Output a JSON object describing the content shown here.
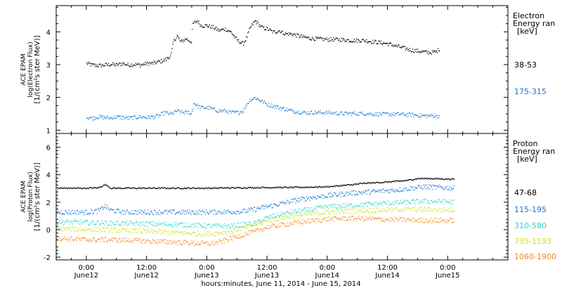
{
  "chart_data": [
    {
      "type": "scatter",
      "title": "",
      "ylabel": [
        "ACE EPAM",
        "log(Electron Flux)",
        "[1/(cm²s ster MeV)]"
      ],
      "ylim": [
        0.9,
        4.8
      ],
      "yticks": [
        1,
        2,
        3,
        4
      ],
      "legend_title": [
        "Electron",
        "Energy ran",
        "[keV]"
      ],
      "series": [
        {
          "name": "38-53",
          "color": "#000000",
          "points": [
            [
              0.0,
              3.05
            ],
            [
              0.05,
              3.0
            ],
            [
              0.1,
              2.98
            ],
            [
              0.15,
              3.0
            ],
            [
              0.2,
              3.02
            ],
            [
              0.25,
              3.0
            ],
            [
              0.3,
              3.05
            ],
            [
              0.35,
              3.0
            ],
            [
              0.4,
              3.02
            ],
            [
              0.45,
              3.0
            ],
            [
              0.5,
              3.05
            ],
            [
              0.55,
              3.05
            ],
            [
              0.6,
              3.1
            ],
            [
              0.65,
              3.15
            ],
            [
              0.7,
              3.3
            ],
            [
              0.72,
              3.7
            ],
            [
              0.75,
              3.9
            ],
            [
              0.78,
              3.7
            ],
            [
              0.8,
              3.75
            ],
            [
              0.83,
              3.8
            ],
            [
              0.85,
              3.75
            ],
            [
              0.87,
              3.7
            ],
            [
              0.88,
              4.25
            ],
            [
              0.92,
              4.35
            ],
            [
              0.95,
              4.2
            ],
            [
              1.0,
              4.2
            ],
            [
              1.05,
              4.15
            ],
            [
              1.1,
              4.05
            ],
            [
              1.15,
              4.1
            ],
            [
              1.2,
              4.0
            ],
            [
              1.25,
              3.75
            ],
            [
              1.3,
              3.65
            ],
            [
              1.33,
              3.85
            ],
            [
              1.36,
              4.15
            ],
            [
              1.4,
              4.35
            ],
            [
              1.45,
              4.15
            ],
            [
              1.5,
              4.1
            ],
            [
              1.55,
              4.0
            ],
            [
              1.6,
              4.05
            ],
            [
              1.65,
              3.95
            ],
            [
              1.7,
              3.95
            ],
            [
              1.75,
              3.9
            ],
            [
              1.8,
              3.85
            ],
            [
              1.85,
              3.82
            ],
            [
              1.9,
              3.8
            ],
            [
              2.0,
              3.78
            ],
            [
              2.1,
              3.78
            ],
            [
              2.2,
              3.75
            ],
            [
              2.3,
              3.75
            ],
            [
              2.4,
              3.7
            ],
            [
              2.5,
              3.65
            ],
            [
              2.6,
              3.55
            ],
            [
              2.7,
              3.45
            ],
            [
              2.8,
              3.4
            ],
            [
              2.85,
              3.38
            ],
            [
              2.9,
              3.4
            ],
            [
              2.93,
              3.5
            ]
          ]
        },
        {
          "name": "175-315",
          "color": "#1e78d2",
          "points": [
            [
              0.0,
              1.4
            ],
            [
              0.05,
              1.38
            ],
            [
              0.1,
              1.42
            ],
            [
              0.15,
              1.4
            ],
            [
              0.2,
              1.38
            ],
            [
              0.25,
              1.42
            ],
            [
              0.3,
              1.4
            ],
            [
              0.35,
              1.38
            ],
            [
              0.4,
              1.4
            ],
            [
              0.45,
              1.42
            ],
            [
              0.5,
              1.4
            ],
            [
              0.55,
              1.42
            ],
            [
              0.6,
              1.45
            ],
            [
              0.65,
              1.55
            ],
            [
              0.7,
              1.5
            ],
            [
              0.75,
              1.6
            ],
            [
              0.8,
              1.55
            ],
            [
              0.85,
              1.55
            ],
            [
              0.87,
              1.5
            ],
            [
              0.89,
              1.85
            ],
            [
              0.92,
              1.75
            ],
            [
              0.95,
              1.7
            ],
            [
              1.0,
              1.7
            ],
            [
              1.05,
              1.65
            ],
            [
              1.1,
              1.6
            ],
            [
              1.15,
              1.6
            ],
            [
              1.2,
              1.55
            ],
            [
              1.25,
              1.55
            ],
            [
              1.3,
              1.6
            ],
            [
              1.33,
              1.8
            ],
            [
              1.36,
              1.95
            ],
            [
              1.4,
              2.0
            ],
            [
              1.45,
              1.9
            ],
            [
              1.5,
              1.8
            ],
            [
              1.55,
              1.75
            ],
            [
              1.6,
              1.7
            ],
            [
              1.7,
              1.6
            ],
            [
              1.8,
              1.55
            ],
            [
              1.9,
              1.55
            ],
            [
              2.0,
              1.55
            ],
            [
              2.1,
              1.52
            ],
            [
              2.2,
              1.52
            ],
            [
              2.3,
              1.52
            ],
            [
              2.4,
              1.5
            ],
            [
              2.5,
              1.5
            ],
            [
              2.6,
              1.5
            ],
            [
              2.7,
              1.48
            ],
            [
              2.8,
              1.45
            ],
            [
              2.9,
              1.45
            ],
            [
              2.93,
              1.45
            ]
          ]
        }
      ]
    },
    {
      "type": "scatter",
      "title": "",
      "ylabel": [
        "ACE EPAM",
        "log(Proton Flux)",
        "[1/(cm²s ster MeV)]"
      ],
      "ylim": [
        -2.2,
        7.0
      ],
      "yticks": [
        -2,
        0,
        2,
        4,
        6
      ],
      "legend_title": [
        "Proton",
        "Energy ran",
        "[keV]"
      ],
      "xlabel": "hours:minutes, June 11, 2014 - June 15, 2014",
      "x_domain_days": [
        -0.25,
        3.5
      ],
      "xticks": [
        {
          "day": 0.0,
          "time": "0:00",
          "date": "June12"
        },
        {
          "day": 0.5,
          "time": "12:00",
          "date": "June12"
        },
        {
          "day": 1.0,
          "time": "0:00",
          "date": "June13"
        },
        {
          "day": 1.5,
          "time": "12:00",
          "date": "June13"
        },
        {
          "day": 2.0,
          "time": "0:00",
          "date": "June14"
        },
        {
          "day": 2.5,
          "time": "12:00",
          "date": "June14"
        },
        {
          "day": 3.0,
          "time": "0:00",
          "date": "June15"
        }
      ],
      "series": [
        {
          "name": "47-68",
          "color": "#000000",
          "points": [
            [
              -0.25,
              3.05
            ],
            [
              0.0,
              3.05
            ],
            [
              0.1,
              3.08
            ],
            [
              0.15,
              3.3
            ],
            [
              0.18,
              3.2
            ],
            [
              0.2,
              3.05
            ],
            [
              0.5,
              3.05
            ],
            [
              1.0,
              3.05
            ],
            [
              1.5,
              3.1
            ],
            [
              1.7,
              3.1
            ],
            [
              2.0,
              3.15
            ],
            [
              2.2,
              3.3
            ],
            [
              2.3,
              3.4
            ],
            [
              2.5,
              3.5
            ],
            [
              2.65,
              3.6
            ],
            [
              2.75,
              3.75
            ],
            [
              2.85,
              3.75
            ],
            [
              3.05,
              3.7
            ]
          ]
        },
        {
          "name": "115-195",
          "color": "#1e78d2",
          "points": [
            [
              -0.25,
              1.3
            ],
            [
              0.0,
              1.3
            ],
            [
              0.1,
              1.4
            ],
            [
              0.15,
              1.75
            ],
            [
              0.2,
              1.45
            ],
            [
              0.3,
              1.3
            ],
            [
              0.5,
              1.3
            ],
            [
              1.0,
              1.3
            ],
            [
              1.3,
              1.35
            ],
            [
              1.5,
              1.7
            ],
            [
              1.7,
              2.1
            ],
            [
              1.85,
              2.35
            ],
            [
              2.0,
              2.5
            ],
            [
              2.2,
              2.7
            ],
            [
              2.4,
              2.8
            ],
            [
              2.6,
              2.95
            ],
            [
              2.8,
              3.15
            ],
            [
              3.05,
              3.05
            ]
          ]
        },
        {
          "name": "310-580",
          "color": "#2ed5c8",
          "points": [
            [
              -0.25,
              0.6
            ],
            [
              0.0,
              0.55
            ],
            [
              0.2,
              0.5
            ],
            [
              0.5,
              0.45
            ],
            [
              0.8,
              0.4
            ],
            [
              1.0,
              0.3
            ],
            [
              1.2,
              0.3
            ],
            [
              1.4,
              0.5
            ],
            [
              1.5,
              0.9
            ],
            [
              1.7,
              1.3
            ],
            [
              1.9,
              1.55
            ],
            [
              2.0,
              1.7
            ],
            [
              2.2,
              1.8
            ],
            [
              2.4,
              1.9
            ],
            [
              2.6,
              2.0
            ],
            [
              2.8,
              2.1
            ],
            [
              3.05,
              2.05
            ]
          ]
        },
        {
          "name": "795-1193",
          "color": "#c8e61e",
          "points": [
            [
              -0.25,
              0.1
            ],
            [
              0.0,
              0.05
            ],
            [
              0.2,
              0.0
            ],
            [
              0.5,
              -0.1
            ],
            [
              0.8,
              -0.2
            ],
            [
              1.0,
              -0.3
            ],
            [
              1.2,
              -0.1
            ],
            [
              1.4,
              0.4
            ],
            [
              1.5,
              0.7
            ],
            [
              1.7,
              1.0
            ],
            [
              1.9,
              1.2
            ],
            [
              2.0,
              1.3
            ],
            [
              2.2,
              1.4
            ],
            [
              2.4,
              1.45
            ],
            [
              2.6,
              1.5
            ],
            [
              2.8,
              1.5
            ],
            [
              3.05,
              1.45
            ]
          ]
        },
        {
          "name": "1060-1900",
          "color": "#ee8a1e",
          "points": [
            [
              -0.25,
              -0.6
            ],
            [
              0.0,
              -0.7
            ],
            [
              0.2,
              -0.7
            ],
            [
              0.5,
              -0.8
            ],
            [
              0.8,
              -0.9
            ],
            [
              1.0,
              -1.0
            ],
            [
              1.1,
              -0.9
            ],
            [
              1.2,
              -0.6
            ],
            [
              1.4,
              -0.1
            ],
            [
              1.5,
              0.2
            ],
            [
              1.7,
              0.5
            ],
            [
              1.9,
              0.7
            ],
            [
              2.0,
              0.8
            ],
            [
              2.2,
              0.85
            ],
            [
              2.4,
              0.8
            ],
            [
              2.6,
              0.75
            ],
            [
              2.8,
              0.7
            ],
            [
              3.05,
              0.7
            ]
          ]
        }
      ]
    }
  ]
}
